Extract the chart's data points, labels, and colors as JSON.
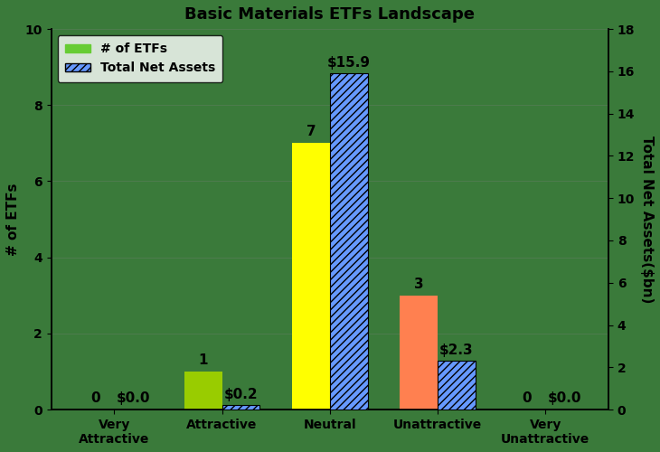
{
  "title": "Basic Materials ETFs Landscape",
  "categories": [
    "Very\nAttractive",
    "Attractive",
    "Neutral",
    "Unattractive",
    "Very\nUnattractive"
  ],
  "etf_counts": [
    0,
    1,
    7,
    3,
    0
  ],
  "total_net_assets": [
    0.0,
    0.2,
    15.9,
    2.3,
    0.0
  ],
  "bar_colors": [
    "#66cc33",
    "#99cc00",
    "#ffff00",
    "#ff8050",
    "#66cc33"
  ],
  "ylabel_left": "# of ETFs",
  "ylabel_right": "Total Net Assets($bn)",
  "ylim_left": [
    0,
    10
  ],
  "ylim_right": [
    0,
    18
  ],
  "background_color": "#3a7a3a",
  "legend_etf_color": "#66cc33",
  "legend_asset_color": "#6699ff",
  "title_fontsize": 13,
  "bar_width": 0.35
}
